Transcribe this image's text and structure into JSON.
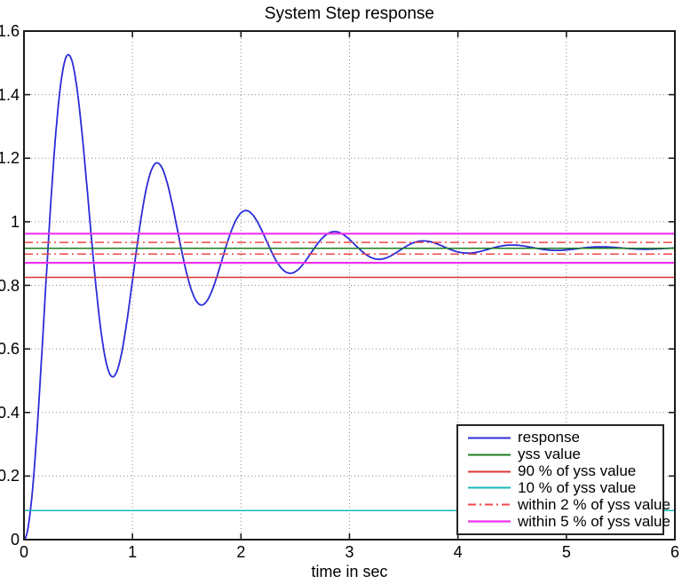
{
  "figure": {
    "background": "#ffffff",
    "axis_color": "#1a1a1a"
  },
  "chart_data": {
    "type": "line",
    "title": "System Step response",
    "xlabel": "time in sec",
    "ylabel": "",
    "xlim": [
      0,
      6
    ],
    "ylim": [
      0,
      1.6
    ],
    "x_ticks": [
      0,
      1,
      2,
      3,
      4,
      5,
      6
    ],
    "x_tick_labels": [
      "0",
      "1",
      "2",
      "3",
      "4",
      "5",
      "6"
    ],
    "y_ticks": [
      0,
      0.2,
      0.4,
      0.6,
      0.8,
      1,
      1.2,
      1.4,
      1.6
    ],
    "y_tick_labels": [
      "0",
      "0.2",
      "0.4",
      "0.6",
      "0.8",
      "1",
      "1.2",
      "1.4",
      "1.6"
    ],
    "grid": true,
    "grid_style": "dotted",
    "grid_color": "#8c8c8c",
    "legend_position": "southeast",
    "yss": 0.9167,
    "series": [
      {
        "name": "response",
        "type": "curve",
        "color": "#2b2bd9",
        "style": "solid",
        "width": 1.8,
        "model": {
          "formula": "y(t) = yss*(1 - exp(-sigma*t)*(cos(wd*t) + (sigma/wd)*sin(wd*t)))",
          "yss": 0.9167,
          "sigma": 1.0,
          "wd": 7.68,
          "t_start": 0,
          "t_end": 6
        },
        "peaks": [
          [
            0.41,
            1.53
          ],
          [
            1.23,
            1.19
          ],
          [
            2.05,
            1.04
          ],
          [
            2.86,
            0.97
          ],
          [
            3.68,
            0.94
          ],
          [
            4.5,
            0.93
          ],
          [
            5.32,
            0.92
          ]
        ],
        "troughs": [
          [
            0.82,
            0.51
          ],
          [
            1.64,
            0.74
          ],
          [
            2.45,
            0.84
          ],
          [
            3.27,
            0.88
          ],
          [
            4.09,
            0.9
          ],
          [
            4.91,
            0.91
          ],
          [
            5.73,
            0.91
          ]
        ]
      },
      {
        "name": "yss value",
        "type": "hline",
        "color": "#1e7d1e",
        "style": "solid",
        "width": 1.5,
        "y": [
          0.9167
        ]
      },
      {
        "name": "90 % of yss value",
        "type": "hline",
        "color": "#e03434",
        "style": "solid",
        "width": 1.4,
        "y": [
          0.825
        ]
      },
      {
        "name": "10 % of yss value",
        "type": "hline",
        "color": "#17b9b9",
        "style": "solid",
        "width": 1.5,
        "y": [
          0.0917
        ]
      },
      {
        "name": "within 2 % of yss value",
        "type": "hline",
        "color": "#f04848",
        "style": "dashdot",
        "width": 1.5,
        "y": [
          0.9351,
          0.8984
        ]
      },
      {
        "name": "within 5 % of yss value",
        "type": "hline",
        "color": "#ee33ee",
        "style": "solid",
        "width": 2.2,
        "y": [
          0.9625,
          0.8709
        ]
      }
    ]
  }
}
